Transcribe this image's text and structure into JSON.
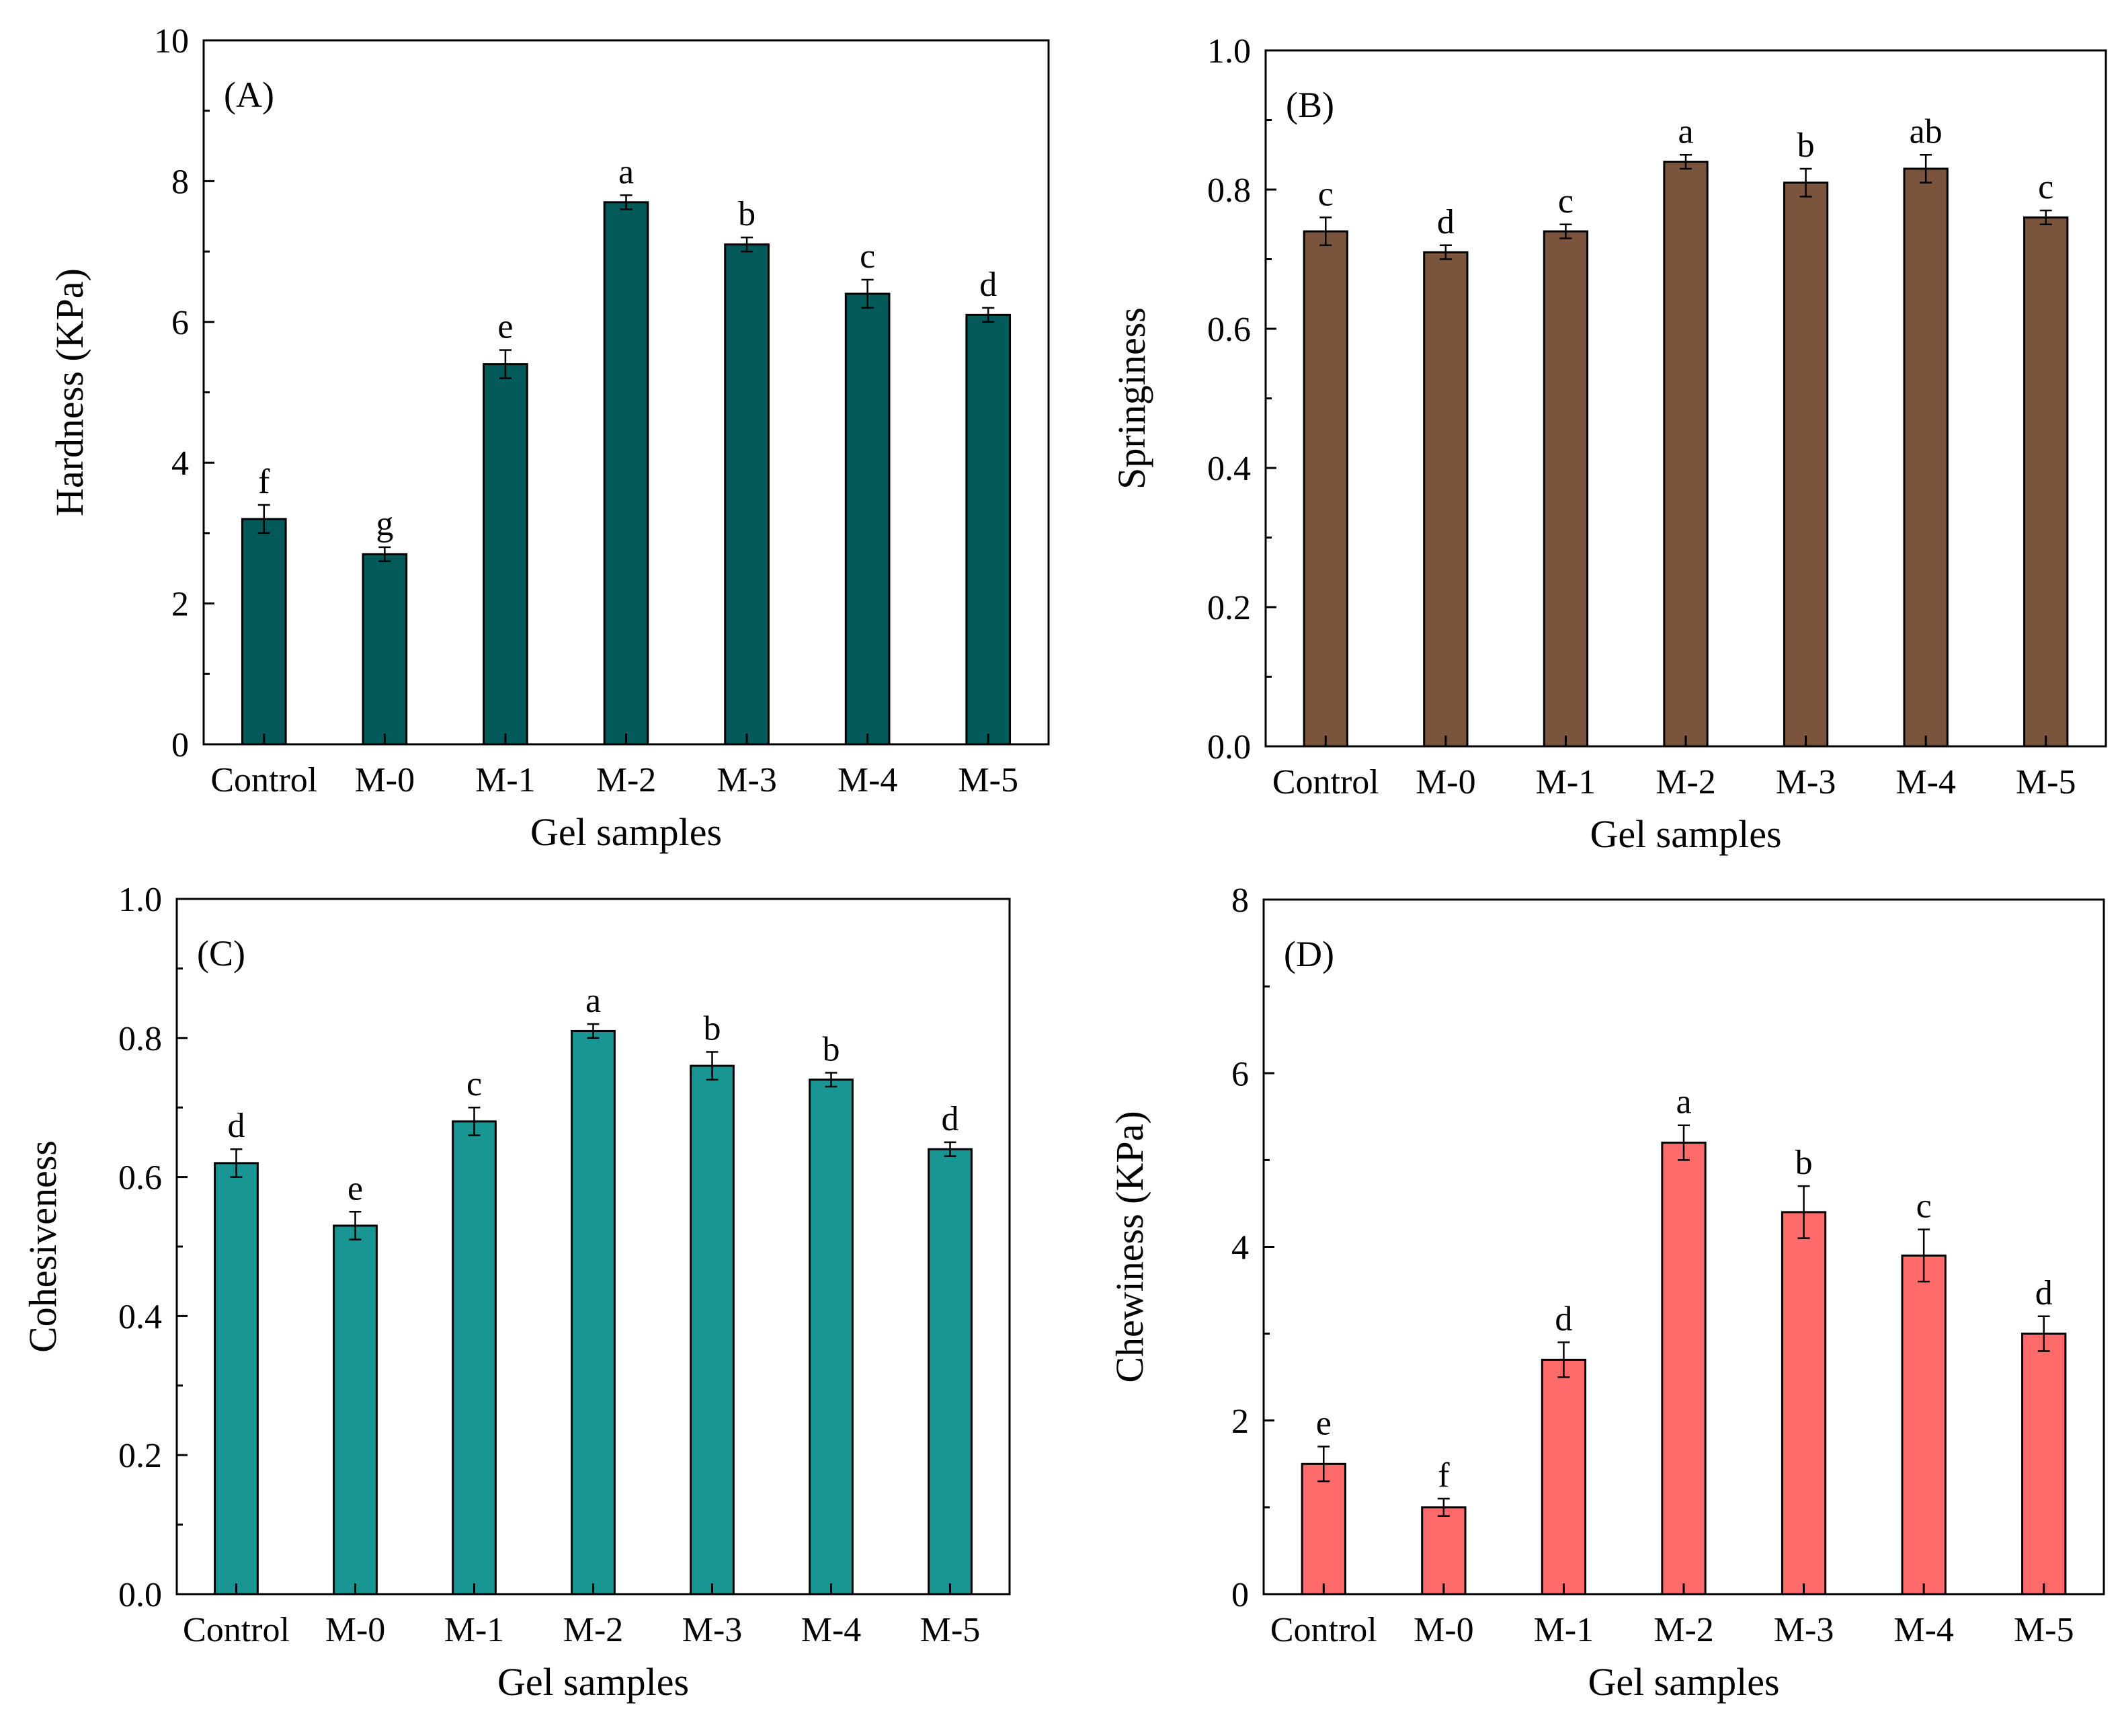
{
  "chart_data": [
    {
      "id": "A",
      "type": "bar",
      "panel_label": "(A)",
      "categories": [
        "Control",
        "M-0",
        "M-1",
        "M-2",
        "M-3",
        "M-4",
        "M-5"
      ],
      "values": [
        3.2,
        2.7,
        5.4,
        7.7,
        7.1,
        6.4,
        6.1
      ],
      "errors": [
        0.2,
        0.1,
        0.2,
        0.1,
        0.1,
        0.2,
        0.1
      ],
      "letters": [
        "f",
        "g",
        "e",
        "a",
        "b",
        "c",
        "d"
      ],
      "ylim": [
        0,
        10
      ],
      "yticks": [
        0,
        2,
        4,
        6,
        8,
        10
      ],
      "ytick_labels": [
        "0",
        "2",
        "4",
        "6",
        "8",
        "10"
      ],
      "xlabel": "Gel samples",
      "ylabel": "Hardness (KPa)",
      "color": "#04595A"
    },
    {
      "id": "B",
      "type": "bar",
      "panel_label": "(B)",
      "categories": [
        "Control",
        "M-0",
        "M-1",
        "M-2",
        "M-3",
        "M-4",
        "M-5"
      ],
      "values": [
        0.74,
        0.71,
        0.74,
        0.84,
        0.81,
        0.83,
        0.76
      ],
      "errors": [
        0.02,
        0.01,
        0.01,
        0.01,
        0.02,
        0.02,
        0.01
      ],
      "letters": [
        "c",
        "d",
        "c",
        "a",
        "b",
        "ab",
        "c"
      ],
      "ylim": [
        0,
        1.0
      ],
      "yticks": [
        0,
        0.2,
        0.4,
        0.6,
        0.8,
        1.0
      ],
      "ytick_labels": [
        "0.0",
        "0.2",
        "0.4",
        "0.6",
        "0.8",
        "1.0"
      ],
      "xlabel": "Gel samples",
      "ylabel": "Springiness",
      "color": "#7A543C"
    },
    {
      "id": "C",
      "type": "bar",
      "panel_label": "(C)",
      "categories": [
        "Control",
        "M-0",
        "M-1",
        "M-2",
        "M-3",
        "M-4",
        "M-5"
      ],
      "values": [
        0.62,
        0.53,
        0.68,
        0.81,
        0.76,
        0.74,
        0.64
      ],
      "errors": [
        0.02,
        0.02,
        0.02,
        0.01,
        0.02,
        0.01,
        0.01
      ],
      "letters": [
        "d",
        "e",
        "c",
        "a",
        "b",
        "b",
        "d"
      ],
      "ylim": [
        0,
        1.0
      ],
      "yticks": [
        0,
        0.2,
        0.4,
        0.6,
        0.8,
        1.0
      ],
      "ytick_labels": [
        "0.0",
        "0.2",
        "0.4",
        "0.6",
        "0.8",
        "1.0"
      ],
      "xlabel": "Gel samples",
      "ylabel": "Cohesiveness",
      "color": "#199693"
    },
    {
      "id": "D",
      "type": "bar",
      "panel_label": "(D)",
      "categories": [
        "Control",
        "M-0",
        "M-1",
        "M-2",
        "M-3",
        "M-4",
        "M-5"
      ],
      "values": [
        1.5,
        1.0,
        2.7,
        5.2,
        4.4,
        3.9,
        3.0
      ],
      "errors": [
        0.2,
        0.1,
        0.2,
        0.2,
        0.3,
        0.3,
        0.2
      ],
      "letters": [
        "e",
        "f",
        "d",
        "a",
        "b",
        "c",
        "d"
      ],
      "ylim": [
        0,
        8
      ],
      "yticks": [
        0,
        2,
        4,
        6,
        8
      ],
      "ytick_labels": [
        "0",
        "2",
        "4",
        "6",
        "8"
      ],
      "xlabel": "Gel samples",
      "ylabel": "Chewiness (KPa)",
      "color": "#FF6A6B"
    }
  ]
}
